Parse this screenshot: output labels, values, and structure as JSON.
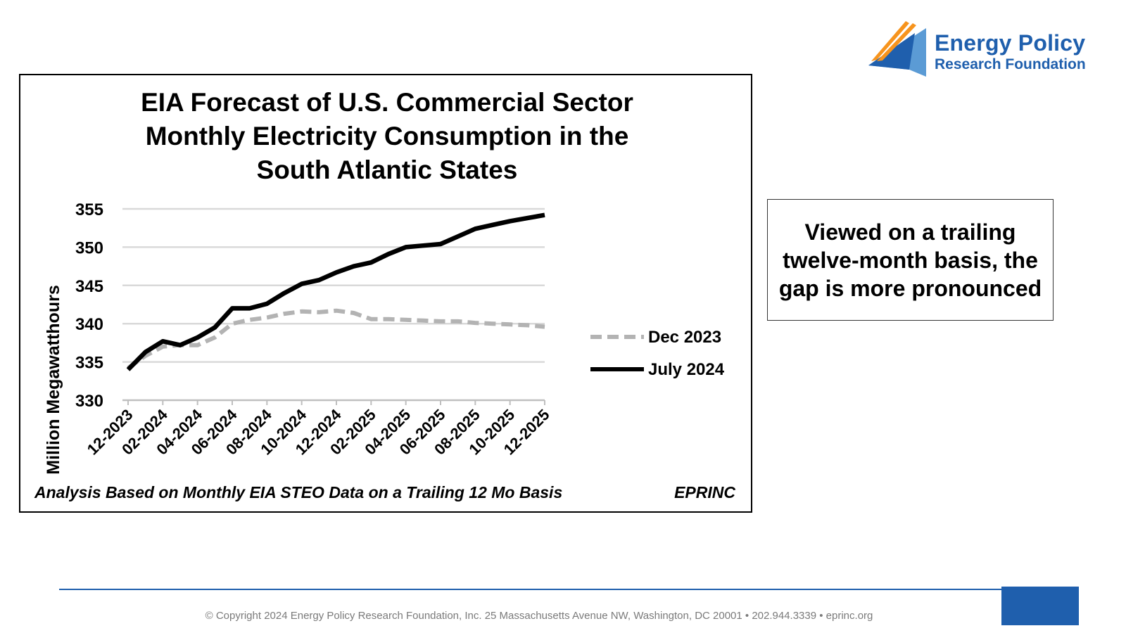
{
  "logo": {
    "line1": "Energy Policy",
    "line2": "Research Foundation",
    "colors": {
      "navy": "#1f5fad",
      "light_blue": "#5b9bd5",
      "orange": "#f7941d"
    }
  },
  "callout": {
    "text": "Viewed on a trailing twelve-month basis, the gap is more pronounced"
  },
  "footer": {
    "text": "© Copyright 2024 Energy Policy Research Foundation, Inc. 25 Massachusetts Avenue NW, Washington, DC 20001 • 202.944.3339 • eprinc.org",
    "accent": "#1f5fad"
  },
  "chart_data": {
    "type": "line",
    "title": [
      "EIA Forecast of U.S. Commercial Sector",
      "Monthly Electricity Consumption in the",
      "South Atlantic States"
    ],
    "ylabel": "Million Megawatthours",
    "ylim": [
      330,
      355
    ],
    "yticks": [
      330,
      335,
      340,
      345,
      350,
      355
    ],
    "tick_labels": [
      "12-2023",
      "02-2024",
      "04-2024",
      "06-2024",
      "08-2024",
      "10-2024",
      "12-2024",
      "02-2025",
      "04-2025",
      "06-2025",
      "08-2025",
      "10-2025",
      "12-2025"
    ],
    "x": [
      "12-2023",
      "01-2024",
      "02-2024",
      "03-2024",
      "04-2024",
      "05-2024",
      "06-2024",
      "07-2024",
      "08-2024",
      "09-2024",
      "10-2024",
      "11-2024",
      "12-2024",
      "01-2025",
      "02-2025",
      "03-2025",
      "04-2025",
      "05-2025",
      "06-2025",
      "07-2025",
      "08-2025",
      "09-2025",
      "10-2025",
      "11-2025",
      "12-2025"
    ],
    "series": [
      {
        "name": "Dec 2023",
        "color": "#b3b3b3",
        "style": "dashed",
        "values": [
          334.2,
          335.8,
          337.0,
          337.2,
          337.2,
          338.2,
          340.0,
          340.5,
          340.8,
          341.3,
          341.6,
          341.5,
          341.7,
          341.4,
          340.6,
          340.6,
          340.5,
          340.4,
          340.3,
          340.3,
          340.1,
          340.0,
          339.9,
          339.8,
          339.6
        ]
      },
      {
        "name": "July 2024",
        "color": "#000000",
        "style": "solid",
        "values": [
          334.0,
          336.3,
          337.7,
          337.2,
          338.2,
          339.5,
          342.0,
          342.0,
          342.6,
          344.0,
          345.2,
          345.7,
          346.7,
          347.5,
          348.0,
          349.1,
          350.0,
          350.2,
          350.4,
          351.4,
          352.4,
          352.9,
          353.4,
          353.8,
          354.2
        ]
      }
    ],
    "legend_position": "right",
    "grid": true,
    "footnote": "Analysis Based on Monthly EIA STEO Data on a Trailing 12 Mo Basis",
    "source": "EPRINC"
  }
}
